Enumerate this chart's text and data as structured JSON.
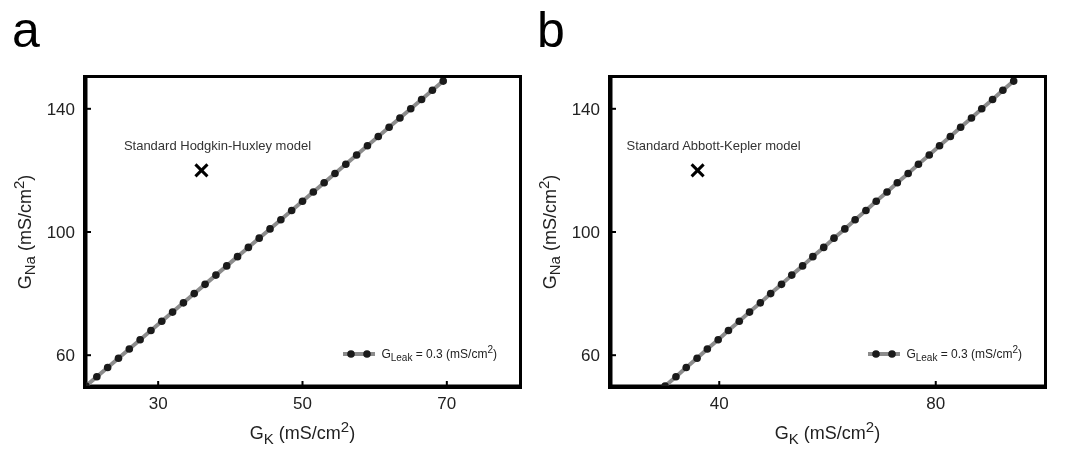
{
  "chart_data": [
    {
      "type": "scatter",
      "title": "a",
      "xlabel": "G$_{K}$ (mS/cm$^{2}$)",
      "ylabel": "G$_{Na}$ (mS/cm$^{2}$)",
      "xlim": [
        20,
        80
      ],
      "xticks": [
        30,
        50,
        70
      ],
      "ylim": [
        50,
        150
      ],
      "yticks": [
        60,
        100,
        140
      ],
      "grid": false,
      "legend": "bottom right",
      "annotations": [
        {
          "text": "Standard Hodgkin-Huxley model",
          "x": 36,
          "y": 120
        }
      ],
      "series": [
        {
          "name": "G$_{Leak}$ = 0.3 (mS/cm$^{2}$)",
          "type": "line",
          "marker": "circle",
          "color": "#1a1a1a",
          "x": [
            20,
            21.5,
            23,
            24.5,
            26,
            27.5,
            29,
            30.5,
            32,
            33.5,
            35,
            36.5,
            38,
            39.5,
            41,
            42.5,
            44,
            45.5,
            47,
            48.5,
            50,
            51.5,
            53,
            54.5,
            56,
            57.5,
            59,
            60.5,
            62,
            63.5,
            65,
            66.5,
            68,
            69.5
          ],
          "values": [
            50,
            53,
            56,
            59,
            62,
            65,
            68,
            71,
            74,
            77,
            80,
            83,
            86,
            89,
            92,
            95,
            98,
            101,
            104,
            107,
            110,
            113,
            116,
            119,
            122,
            125,
            128,
            131,
            134,
            137,
            140,
            143,
            146,
            149
          ]
        },
        {
          "type": "scatter",
          "marker": "cross",
          "color": "#000000",
          "x": [
            36
          ],
          "values": [
            120
          ]
        }
      ]
    },
    {
      "type": "scatter",
      "title": "b",
      "xlabel": "G$_{K}$ (mS/cm$^{2}$)",
      "ylabel": "G$_{Na}$ (mS/cm$^{2}$)",
      "xlim": [
        20,
        100
      ],
      "xticks": [
        40,
        80
      ],
      "ylim": [
        50,
        150
      ],
      "yticks": [
        60,
        100,
        140
      ],
      "grid": false,
      "legend": "bottom right",
      "annotations": [
        {
          "text": "Standard Abbott-Kepler model",
          "x": 36,
          "y": 120
        }
      ],
      "series": [
        {
          "name": "G$_{Leak}$ = 0.3 (mS/cm$^{2}$)",
          "type": "line",
          "marker": "circle",
          "color": "#1a1a1a",
          "x": [
            30,
            32,
            33.9,
            35.9,
            37.8,
            39.8,
            41.7,
            43.7,
            45.6,
            47.6,
            49.5,
            51.5,
            53.4,
            55.4,
            57.3,
            59.3,
            61.2,
            63.2,
            65.1,
            67.1,
            69,
            71,
            72.9,
            74.9,
            76.8,
            78.8,
            80.7,
            82.7,
            84.6,
            86.6,
            88.5,
            90.5,
            92.4,
            94.4
          ],
          "values": [
            50,
            53,
            56,
            59,
            62,
            65,
            68,
            71,
            74,
            77,
            80,
            83,
            86,
            89,
            92,
            95,
            98,
            101,
            104,
            107,
            110,
            113,
            116,
            119,
            122,
            125,
            128,
            131,
            134,
            137,
            140,
            143,
            146,
            149
          ]
        },
        {
          "type": "scatter",
          "marker": "cross",
          "color": "#000000",
          "x": [
            36
          ],
          "values": [
            120
          ]
        }
      ]
    }
  ]
}
